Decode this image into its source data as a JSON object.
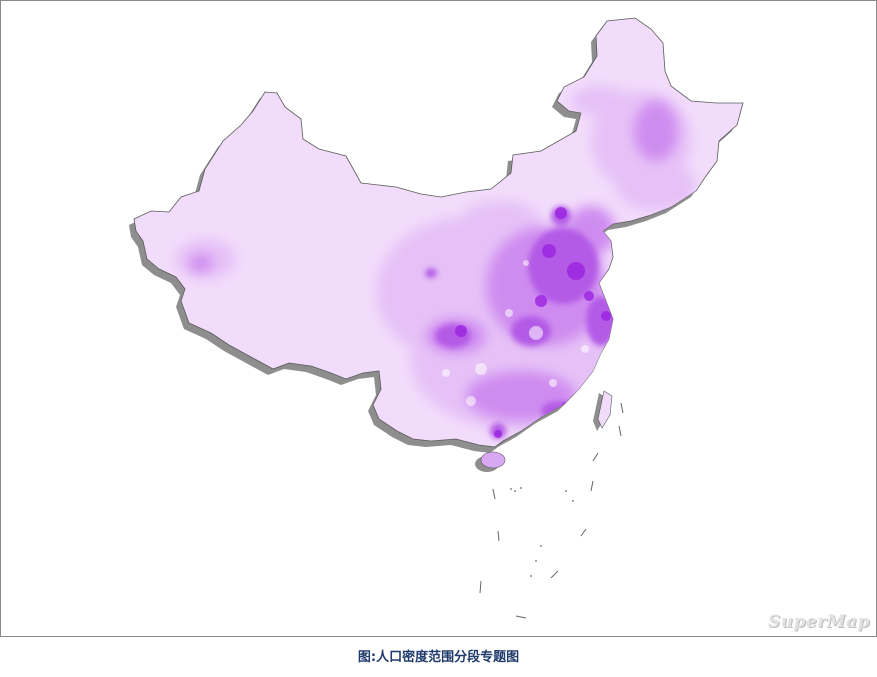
{
  "caption": "图:人口密度范围分段专题图",
  "watermark": "SuperMap",
  "colors": {
    "frame_border": "#8a8a8a",
    "shadow": "#7a7a7a",
    "density_lowest": "#f2dcfb",
    "density_low": "#e6c1f7",
    "density_medium": "#cf8cf0",
    "density_high": "#b35ae6",
    "density_highest": "#9b22e0",
    "caption_text": "#1f3a6b"
  }
}
